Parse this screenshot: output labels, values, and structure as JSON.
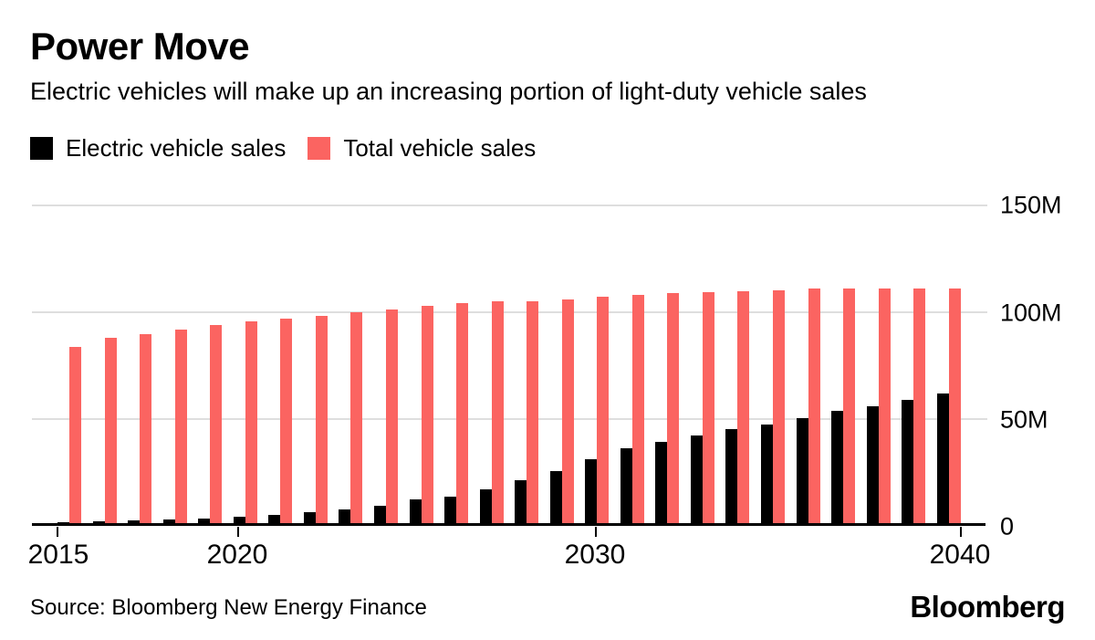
{
  "header": {
    "title": "Power Move",
    "subtitle": "Electric vehicles will make up an increasing portion of light-duty vehicle sales"
  },
  "legend": {
    "items": [
      {
        "label": "Electric vehicle sales",
        "color": "#000000"
      },
      {
        "label": "Total vehicle sales",
        "color": "#FB6461"
      }
    ]
  },
  "y_axis": {
    "tick_labels": [
      "150M",
      "100M",
      "50M",
      "0"
    ]
  },
  "x_axis": {
    "tick_labels": [
      "2015",
      "2020",
      "2030",
      "2040"
    ]
  },
  "footer": {
    "source": "Source: Bloomberg New Energy Finance",
    "brand": "Bloomberg"
  },
  "chart_data": {
    "type": "bar",
    "title": "Power Move",
    "subtitle": "Electric vehicles will make up an increasing portion of light-duty vehicle sales",
    "unit": "million vehicles per year",
    "categories": [
      2015,
      2016,
      2017,
      2018,
      2019,
      2020,
      2021,
      2022,
      2023,
      2024,
      2025,
      2026,
      2027,
      2028,
      2029,
      2030,
      2031,
      2032,
      2033,
      2034,
      2035,
      2036,
      2037,
      2038,
      2039,
      2040
    ],
    "series": [
      {
        "name": "Electric vehicle sales",
        "color": "#000000",
        "values": [
          0.4,
          0.8,
          1.2,
          1.7,
          2.2,
          2.9,
          3.8,
          5,
          6.4,
          8,
          11,
          12.5,
          16,
          20,
          24.5,
          30,
          35,
          38,
          41,
          44,
          46.5,
          49.5,
          53,
          55,
          58,
          61
        ]
      },
      {
        "name": "Total vehicle sales",
        "color": "#FB6461",
        "values": [
          83,
          87,
          89,
          91,
          93,
          95,
          96,
          97.5,
          99,
          100.5,
          102,
          103.5,
          104.5,
          104.5,
          105,
          106.5,
          107.5,
          108,
          108.5,
          109,
          109.5,
          110.5,
          110.5,
          110.5,
          110.5,
          110.5
        ]
      }
    ],
    "ylim": [
      0,
      150
    ],
    "y_tick_labels": [
      "0",
      "50M",
      "100M",
      "150M"
    ],
    "x_tick_labels": [
      "2015",
      "2020",
      "2030",
      "2040"
    ],
    "grid": true,
    "legend_position": "top-left"
  }
}
